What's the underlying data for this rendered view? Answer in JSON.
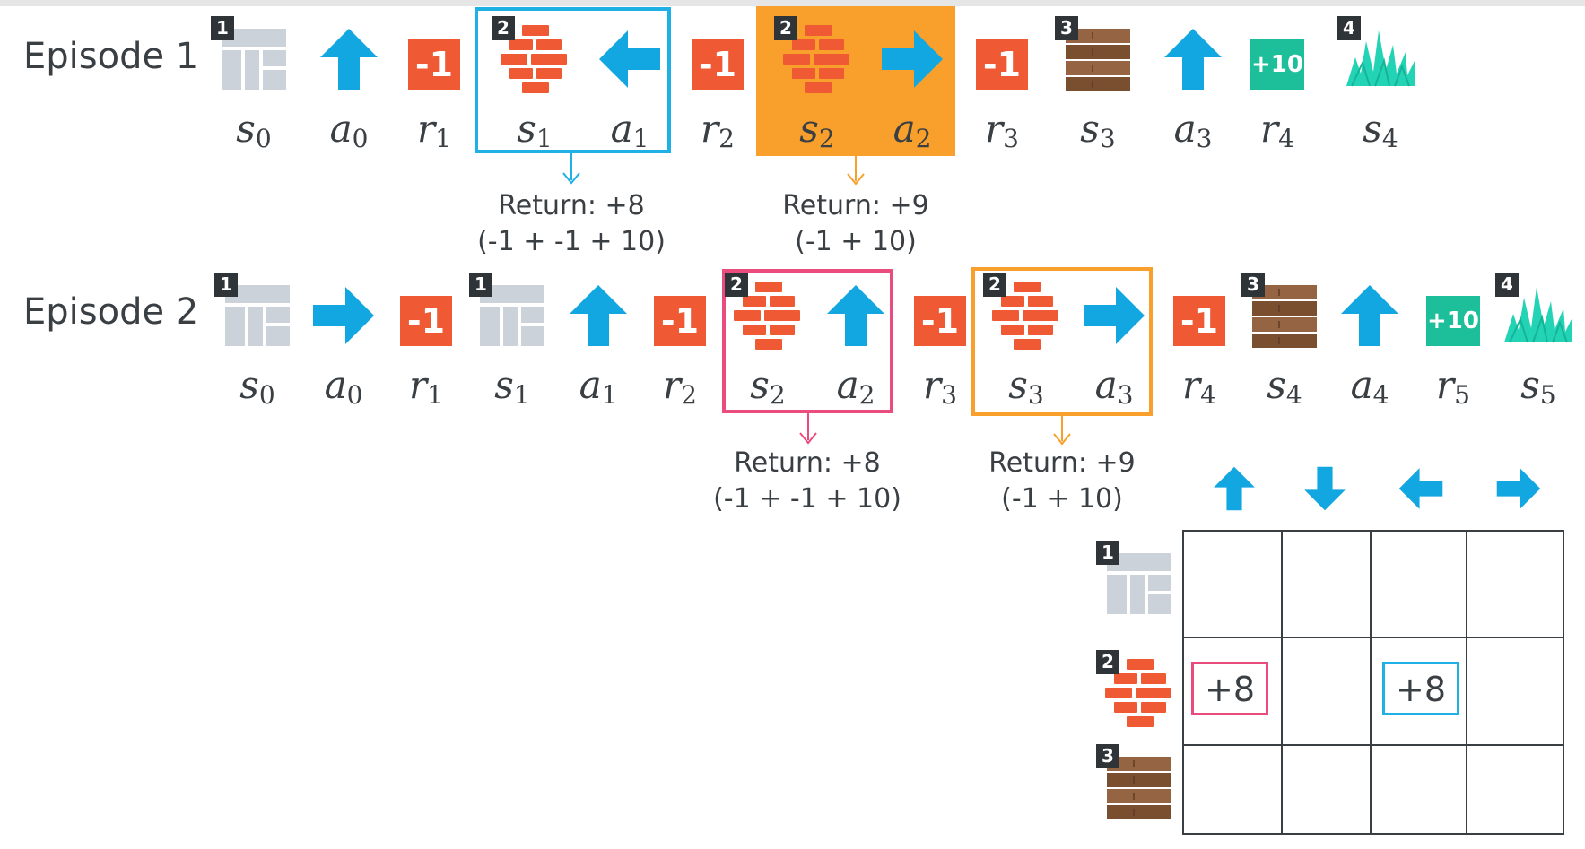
{
  "colors": {
    "reward_negative": "#ef5a35",
    "reward_positive": "#1cbf9a",
    "arrow": "#12a7e1",
    "wall": "#ccd2da",
    "brick": "#ef5a35",
    "wood": "#8b5e3c",
    "grass": "#22d3b5",
    "highlight_blue": "#1fb0e6",
    "highlight_orange": "#f8a02b",
    "highlight_pink": "#ea4c7e"
  },
  "episodes": [
    {
      "title": "Episode 1",
      "tokens": [
        {
          "kind": "state",
          "tile": "wall",
          "badge": "1",
          "var": "s",
          "sub": "0"
        },
        {
          "kind": "action",
          "dir": "up",
          "var": "a",
          "sub": "0"
        },
        {
          "kind": "reward",
          "value": "-1",
          "var": "r",
          "sub": "1"
        },
        {
          "kind": "state",
          "tile": "brick",
          "badge": "2",
          "var": "s",
          "sub": "1"
        },
        {
          "kind": "action",
          "dir": "left",
          "var": "a",
          "sub": "1"
        },
        {
          "kind": "reward",
          "value": "-1",
          "var": "r",
          "sub": "2"
        },
        {
          "kind": "state",
          "tile": "brick",
          "badge": "2",
          "var": "s",
          "sub": "2"
        },
        {
          "kind": "action",
          "dir": "right",
          "var": "a",
          "sub": "2"
        },
        {
          "kind": "reward",
          "value": "-1",
          "var": "r",
          "sub": "3"
        },
        {
          "kind": "state",
          "tile": "wood",
          "badge": "3",
          "var": "s",
          "sub": "3"
        },
        {
          "kind": "action",
          "dir": "up",
          "var": "a",
          "sub": "3"
        },
        {
          "kind": "reward",
          "value": "+10",
          "var": "r",
          "sub": "4"
        },
        {
          "kind": "state",
          "tile": "grass",
          "badge": "4",
          "var": "s",
          "sub": "4"
        }
      ],
      "returns": [
        {
          "line1": "Return: +8",
          "line2": "(-1 + -1 + 10)",
          "color": "#1fb0e6"
        },
        {
          "line1": "Return: +9",
          "line2": "(-1 + 10)",
          "color": "#f8a02b"
        }
      ]
    },
    {
      "title": "Episode 2",
      "tokens": [
        {
          "kind": "state",
          "tile": "wall",
          "badge": "1",
          "var": "s",
          "sub": "0"
        },
        {
          "kind": "action",
          "dir": "right",
          "var": "a",
          "sub": "0"
        },
        {
          "kind": "reward",
          "value": "-1",
          "var": "r",
          "sub": "1"
        },
        {
          "kind": "state",
          "tile": "wall",
          "badge": "1",
          "var": "s",
          "sub": "1"
        },
        {
          "kind": "action",
          "dir": "up",
          "var": "a",
          "sub": "1"
        },
        {
          "kind": "reward",
          "value": "-1",
          "var": "r",
          "sub": "2"
        },
        {
          "kind": "state",
          "tile": "brick",
          "badge": "2",
          "var": "s",
          "sub": "2"
        },
        {
          "kind": "action",
          "dir": "up",
          "var": "a",
          "sub": "2"
        },
        {
          "kind": "reward",
          "value": "-1",
          "var": "r",
          "sub": "3"
        },
        {
          "kind": "state",
          "tile": "brick",
          "badge": "2",
          "var": "s",
          "sub": "3"
        },
        {
          "kind": "action",
          "dir": "right",
          "var": "a",
          "sub": "3"
        },
        {
          "kind": "reward",
          "value": "-1",
          "var": "r",
          "sub": "4"
        },
        {
          "kind": "state",
          "tile": "wood",
          "badge": "3",
          "var": "s",
          "sub": "4"
        },
        {
          "kind": "action",
          "dir": "up",
          "var": "a",
          "sub": "4"
        },
        {
          "kind": "reward",
          "value": "+10",
          "var": "r",
          "sub": "5"
        },
        {
          "kind": "state",
          "tile": "grass",
          "badge": "4",
          "var": "s",
          "sub": "5"
        }
      ],
      "returns": [
        {
          "line1": "Return: +8",
          "line2": "(-1 + -1 + 10)",
          "color": "#ea4c7e"
        },
        {
          "line1": "Return: +9",
          "line2": "(-1 + 10)",
          "color": "#f8a02b"
        }
      ]
    }
  ],
  "q_table": {
    "column_actions": [
      "up",
      "down",
      "left",
      "right"
    ],
    "rows": [
      {
        "state": "wall",
        "badge": "1",
        "cells": [
          "",
          "",
          "",
          ""
        ]
      },
      {
        "state": "brick",
        "badge": "2",
        "cells": [
          "+8",
          "",
          "+8",
          ""
        ]
      },
      {
        "state": "wood",
        "badge": "3",
        "cells": [
          "",
          "",
          "",
          ""
        ]
      }
    ]
  }
}
